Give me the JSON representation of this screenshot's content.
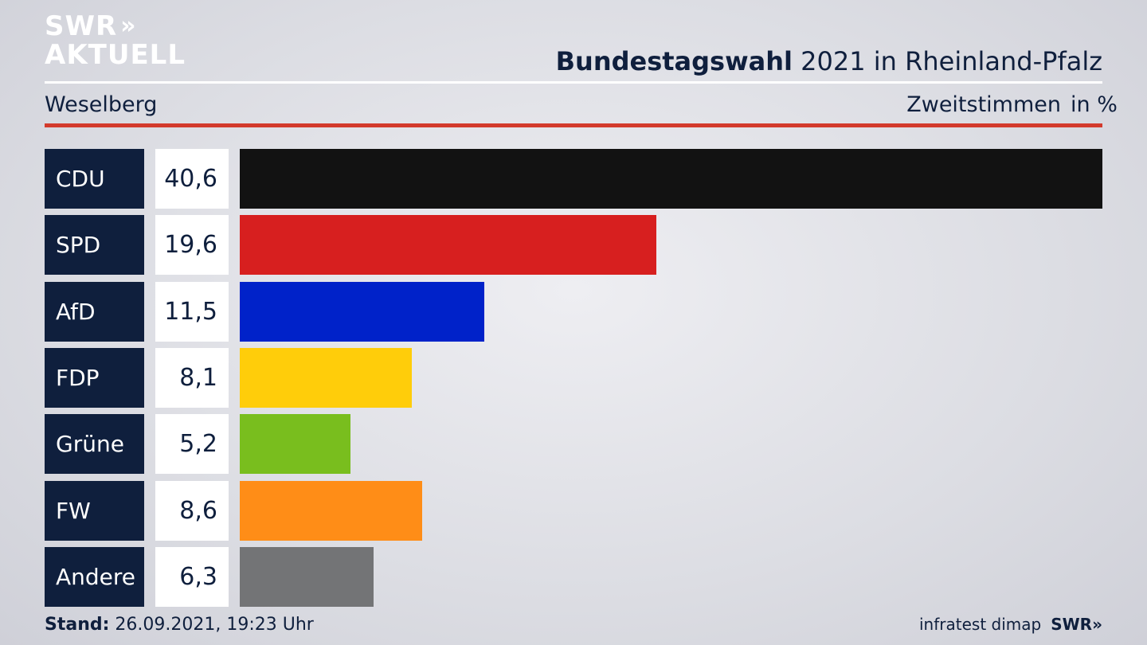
{
  "logo": {
    "line1": "SWR",
    "line1_chevrons": "»",
    "line2": "AKTUELL"
  },
  "header": {
    "title_bold": "Bundestagswahl",
    "title_rest": " 2021 in Rheinland-Pfalz",
    "location": "Weselberg",
    "metric": "Zweitstimmen",
    "unit": "in %"
  },
  "chart_data": {
    "type": "bar",
    "orientation": "horizontal",
    "categories": [
      "CDU",
      "SPD",
      "AfD",
      "FDP",
      "Grüne",
      "FW",
      "Andere"
    ],
    "values": [
      40.6,
      19.6,
      11.5,
      8.1,
      5.2,
      8.6,
      6.3
    ],
    "value_labels": [
      "40,6",
      "19,6",
      "11,5",
      "8,1",
      "5,2",
      "8,6",
      "6,3"
    ],
    "colors": [
      "#121212",
      "#d71f1f",
      "#0022c9",
      "#ffcd0a",
      "#79be1e",
      "#ff8d17",
      "#737476"
    ],
    "title": "Bundestagswahl 2021 in Rheinland-Pfalz",
    "xlabel": "",
    "ylabel": "",
    "xlim": [
      0,
      40.6
    ],
    "grid": false,
    "legend": "none"
  },
  "footer": {
    "stand_label": "Stand:",
    "stand_value": " 26.09.2021, 19:23 Uhr",
    "source": "infratest dimap",
    "brand": "SWR»"
  }
}
